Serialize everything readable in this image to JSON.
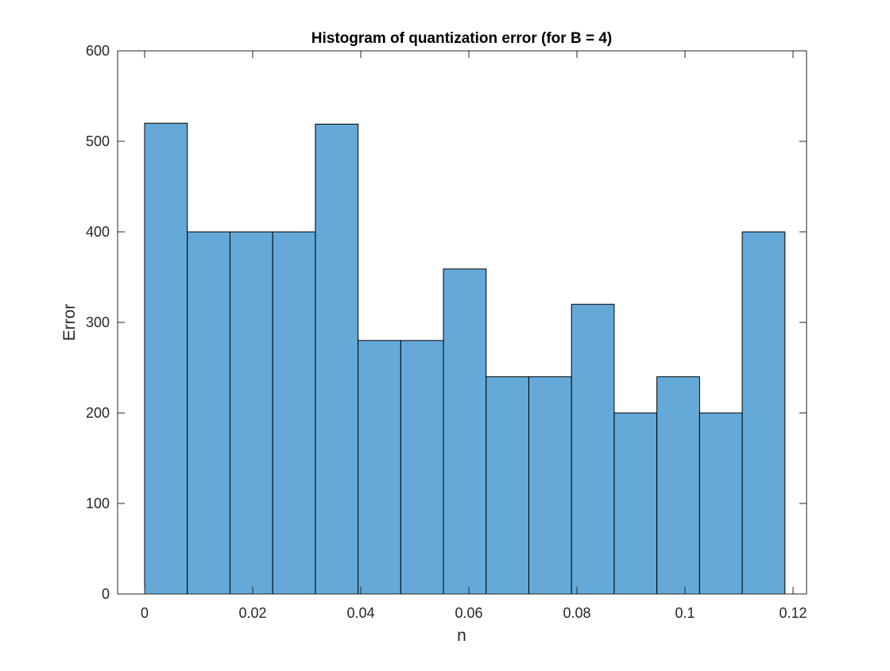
{
  "chart_data": {
    "type": "bar",
    "title": "Histogram of quantization error (for B = 4)",
    "xlabel": "n",
    "ylabel": "Error",
    "xlim": [
      -0.005,
      0.1225
    ],
    "ylim": [
      0,
      600
    ],
    "xticks": [
      0,
      0.02,
      0.04,
      0.06,
      0.08,
      0.1,
      0.12
    ],
    "xtick_labels": [
      "0",
      "0.02",
      "0.04",
      "0.06",
      "0.08",
      "0.1",
      "0.12"
    ],
    "yticks": [
      0,
      100,
      200,
      300,
      400,
      500,
      600
    ],
    "ytick_labels": [
      "0",
      "100",
      "200",
      "300",
      "400",
      "500",
      "600"
    ],
    "bin_edges": [
      0,
      0.0079,
      0.0158,
      0.0237,
      0.0316,
      0.0395,
      0.0474,
      0.0553,
      0.0632,
      0.0711,
      0.079,
      0.0869,
      0.0948,
      0.1027,
      0.1106,
      0.1185
    ],
    "values": [
      520,
      400,
      400,
      400,
      519,
      280,
      280,
      359,
      240,
      240,
      320,
      200,
      240,
      200,
      400
    ],
    "bar_color": "#64a9d8",
    "edge_color": "#000000",
    "grid": false,
    "legend": "none"
  }
}
